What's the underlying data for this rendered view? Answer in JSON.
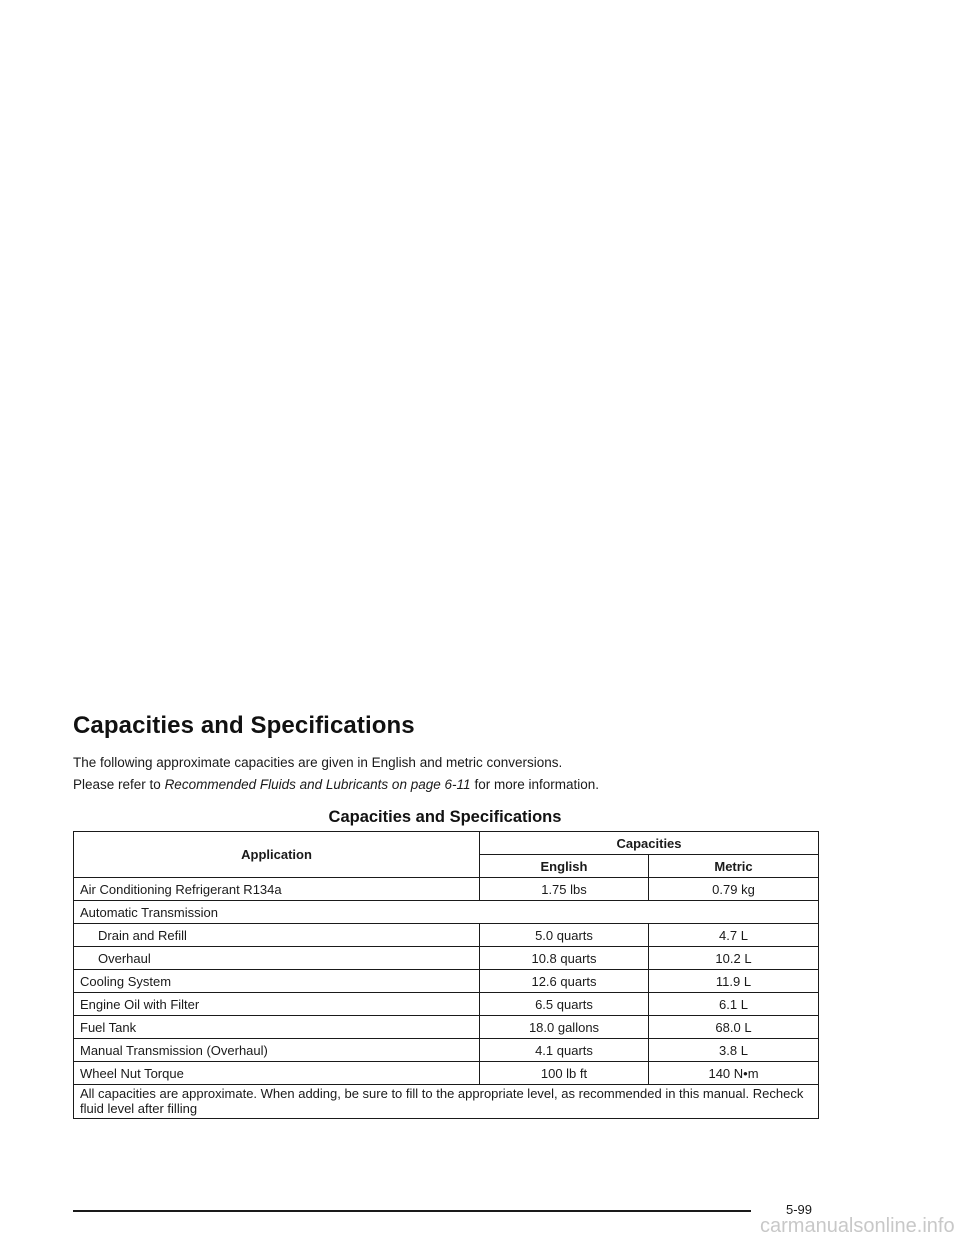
{
  "section": {
    "heading": "Capacities and Specifications",
    "intro": "The following approximate capacities are given in English and metric conversions.",
    "refer_prefix": "Please refer to",
    "refer_link": "Recommended Fluids and Lubricants on page 6-11",
    "refer_suffix": "for more information."
  },
  "table": {
    "title": "Capacities and Specifications",
    "headers": {
      "application": "Application",
      "capacities": "Capacities",
      "english": "English",
      "metric": "Metric"
    },
    "rows": [
      {
        "application": "Air Conditioning Refrigerant R134a",
        "english": "1.75 lbs",
        "metric": "0.79 kg"
      },
      {
        "application": "Automatic Transmission"
      },
      {
        "application": "Drain and Refill",
        "english": "5.0 quarts",
        "metric": "4.7 L"
      },
      {
        "application": "Overhaul",
        "english": "10.8 quarts",
        "metric": "10.2 L"
      },
      {
        "application": "Cooling System",
        "english": "12.6 quarts",
        "metric": "11.9 L"
      },
      {
        "application": "Engine Oil with Filter",
        "english": "6.5 quarts",
        "metric": "6.1 L"
      },
      {
        "application": "Fuel Tank",
        "english": "18.0 gallons",
        "metric": "68.0 L"
      },
      {
        "application": "Manual Transmission (Overhaul)",
        "english": "4.1 quarts",
        "metric": "3.8 L"
      },
      {
        "application": "Wheel Nut Torque",
        "english": "100 lb ft",
        "metric": "140 N•m"
      }
    ],
    "note": "All capacities are approximate. When adding, be sure to fill to the appropriate level, as recommended in this manual. Recheck fluid level after filling"
  },
  "footer": {
    "page_number": "5-99",
    "watermark": "carmanualsonline.info"
  }
}
